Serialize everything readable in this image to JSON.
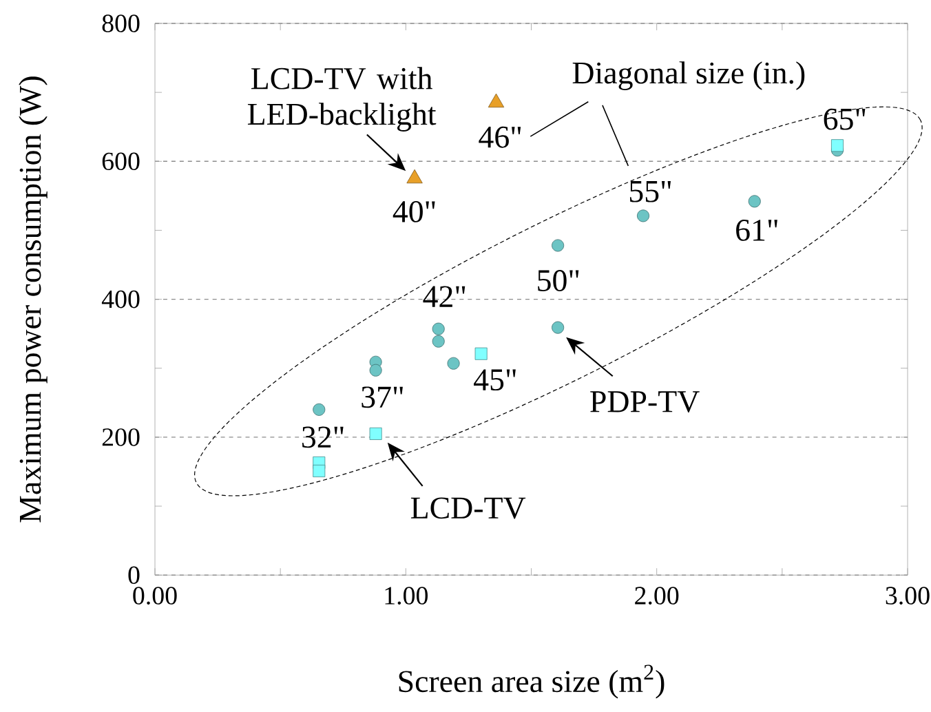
{
  "chart_data": {
    "type": "scatter",
    "xlabel": "Screen area size (m$^{2}$)",
    "ylabel": "Maximum power consumption (W)",
    "xlim": [
      0,
      3
    ],
    "ylim": [
      0,
      800
    ],
    "xticks": [
      {
        "value": 0,
        "label": "0.00"
      },
      {
        "value": 0.5,
        "label": null
      },
      {
        "value": 1,
        "label": "1.00"
      },
      {
        "value": 1.5,
        "label": null
      },
      {
        "value": 2,
        "label": "2.00"
      },
      {
        "value": 2.5,
        "label": null
      },
      {
        "value": 3,
        "label": "3.00"
      }
    ],
    "yticks": [
      0,
      {
        "value": 100,
        "label": null
      },
      200,
      {
        "value": 300,
        "label": null
      },
      400,
      {
        "value": 500,
        "label": null
      },
      600,
      {
        "value": 700,
        "label": null
      },
      800
    ],
    "grid": "y",
    "series": [
      {
        "name": "PDP-TV",
        "color": "#6cc4c4",
        "marker": "circle",
        "x": [
          0.654,
          0.88,
          0.88,
          1.13,
          1.13,
          1.19,
          1.606,
          1.606,
          1.946,
          2.39,
          2.72
        ],
        "values": [
          240,
          309,
          297,
          357,
          339,
          307,
          478,
          359,
          521,
          542,
          616
        ]
      },
      {
        "name": "LCD-TV",
        "color": "#80ffff",
        "marker": "square",
        "x": [
          0.654,
          0.654,
          0.88,
          1.3,
          2.72
        ],
        "values": [
          163,
          151,
          205,
          321,
          623
        ]
      },
      {
        "name": "LCD-TV with LED-backlight",
        "color": "#e8a028",
        "marker": "triangle",
        "x": [
          1.035,
          1.36
        ],
        "values": [
          575,
          685
        ]
      }
    ],
    "annotations": [
      "Diagonal size (in.)",
      "32\"",
      "37\"",
      "42\"",
      "45\"",
      "50\"",
      "55\"",
      "61\"",
      "65\"",
      "40\"",
      "46\""
    ]
  }
}
